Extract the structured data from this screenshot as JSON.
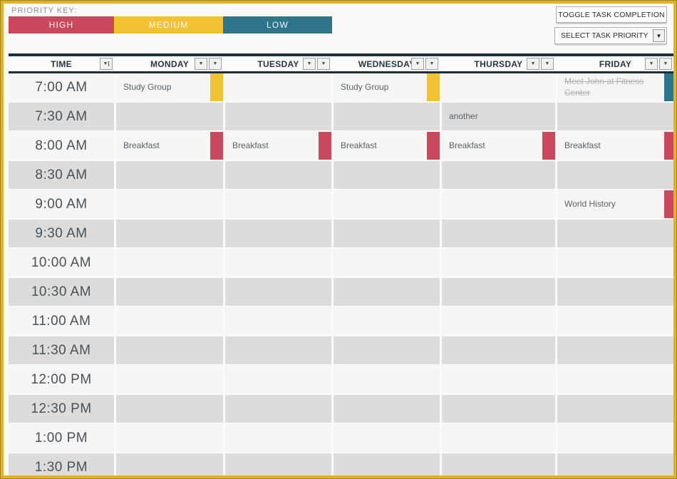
{
  "priority_key": {
    "label": "PRIORITY KEY:",
    "items": [
      {
        "label": "HIGH",
        "level": "high"
      },
      {
        "label": "MEDIUM",
        "level": "medium"
      },
      {
        "label": "LOW",
        "level": "low"
      }
    ],
    "colors": {
      "high": "#C9485B",
      "medium": "#F2C233",
      "low": "#2E758B"
    }
  },
  "controls": {
    "toggle_button": "TOGGLE TASK COMPLETION",
    "priority_select": "SELECT TASK PRIORITY",
    "combo_arrow_icon": "▼"
  },
  "table": {
    "filter_icon": "▼",
    "columns": [
      {
        "key": "time",
        "label": "TIME"
      },
      {
        "key": "monday",
        "label": "MONDAY"
      },
      {
        "key": "tuesday",
        "label": "TUESDAY"
      },
      {
        "key": "wednesday",
        "label": "WEDNESDAY"
      },
      {
        "key": "thursday",
        "label": "THURSDAY"
      },
      {
        "key": "friday",
        "label": "FRIDAY"
      }
    ],
    "rows": [
      {
        "time": "7:00 AM",
        "tasks": {
          "monday": {
            "text": "Study Group",
            "priority": "medium"
          },
          "wednesday": {
            "text": "Study Group",
            "priority": "medium"
          },
          "friday": {
            "text": "Meet John at Fitness Center",
            "priority": "low",
            "completed": true
          }
        }
      },
      {
        "time": "7:30 AM",
        "tasks": {
          "thursday": {
            "text": "another"
          }
        }
      },
      {
        "time": "8:00 AM",
        "tasks": {
          "monday": {
            "text": "Breakfast",
            "priority": "high"
          },
          "tuesday": {
            "text": "Breakfast",
            "priority": "high"
          },
          "wednesday": {
            "text": "Breakfast",
            "priority": "high"
          },
          "thursday": {
            "text": "Breakfast",
            "priority": "high"
          },
          "friday": {
            "text": "Breakfast",
            "priority": "high"
          }
        }
      },
      {
        "time": "8:30 AM",
        "tasks": {}
      },
      {
        "time": "9:00 AM",
        "tasks": {
          "friday": {
            "text": "World History",
            "priority": "high"
          }
        }
      },
      {
        "time": "9:30 AM",
        "tasks": {}
      },
      {
        "time": "10:00 AM",
        "tasks": {}
      },
      {
        "time": "10:30 AM",
        "tasks": {}
      },
      {
        "time": "11:00 AM",
        "tasks": {}
      },
      {
        "time": "11:30 AM",
        "tasks": {}
      },
      {
        "time": "12:00 PM",
        "tasks": {}
      },
      {
        "time": "12:30 PM",
        "tasks": {}
      },
      {
        "time": "1:00 PM",
        "tasks": {}
      },
      {
        "time": "1:30 PM",
        "tasks": {}
      }
    ]
  },
  "colors": {
    "frame": "#E0B22B",
    "header_border": "#1B313A",
    "row_light": "#F6F5F3",
    "row_dark": "#DDDCDA",
    "time_text": "#46535C",
    "task_text": "#57646D",
    "completed_text": "#A9B1B6",
    "header_text": "#24364A"
  }
}
